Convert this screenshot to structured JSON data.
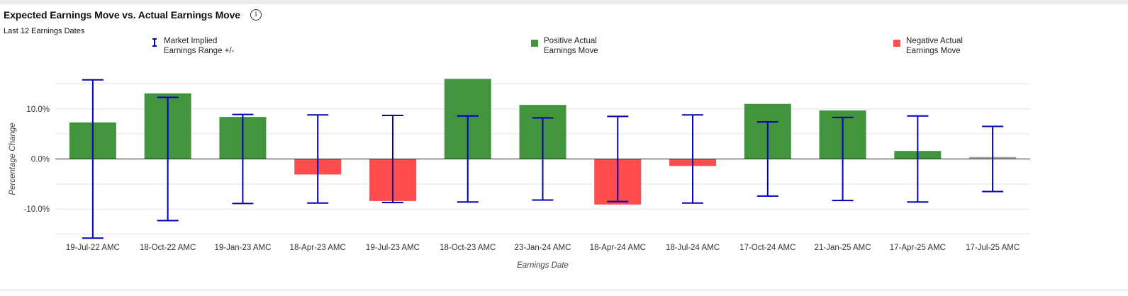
{
  "header": {
    "title": "Expected Earnings Move vs. Actual Earnings Move",
    "info_icon": "info-icon",
    "subtitle": "Last 12 Earnings Dates"
  },
  "legend": {
    "implied": "Market Implied\nEarnings Range +/-",
    "positive": "Positive Actual\nEarnings Move",
    "negative": "Negative Actual\nEarnings Move"
  },
  "colors": {
    "positive": "#43943f",
    "negative": "#ff4d4d",
    "neutral": "#a6a6a6",
    "errorbar": "#0000b8",
    "grid": "#e3e3e3",
    "zero": "#222222"
  },
  "chart_data": {
    "type": "bar",
    "xlabel": "Earnings Date",
    "ylabel": "Percentage Change",
    "ylim": [
      -15.5,
      15.5
    ],
    "yticks": [
      {
        "value": -10,
        "label": "-10.0%"
      },
      {
        "value": 0,
        "label": "0.0%"
      },
      {
        "value": 10,
        "label": "10.0%"
      }
    ],
    "grid_values": [
      -15,
      -5,
      5,
      15
    ],
    "categories": [
      "19-Jul-22 AMC",
      "18-Oct-22 AMC",
      "19-Jan-23 AMC",
      "18-Apr-23 AMC",
      "19-Jul-23 AMC",
      "18-Oct-23 AMC",
      "23-Jan-24 AMC",
      "18-Apr-24 AMC",
      "18-Jul-24 AMC",
      "17-Oct-24 AMC",
      "21-Jan-25 AMC",
      "17-Apr-25 AMC",
      "17-Jul-25 AMC"
    ],
    "series": [
      {
        "name": "Positive Actual Earnings Move / Negative Actual Earnings Move",
        "values": [
          7.3,
          13.1,
          8.4,
          -3.1,
          -8.4,
          16.0,
          10.8,
          -9.1,
          -1.4,
          11.0,
          9.7,
          1.6,
          0.4
        ]
      },
      {
        "name": "Market Implied Earnings Range +/-",
        "values": [
          15.8,
          12.3,
          8.9,
          8.8,
          8.7,
          8.6,
          8.2,
          8.5,
          8.8,
          7.4,
          8.3,
          8.6,
          6.5
        ]
      }
    ],
    "pending_indices": [
      12
    ],
    "legend_position": "top"
  }
}
